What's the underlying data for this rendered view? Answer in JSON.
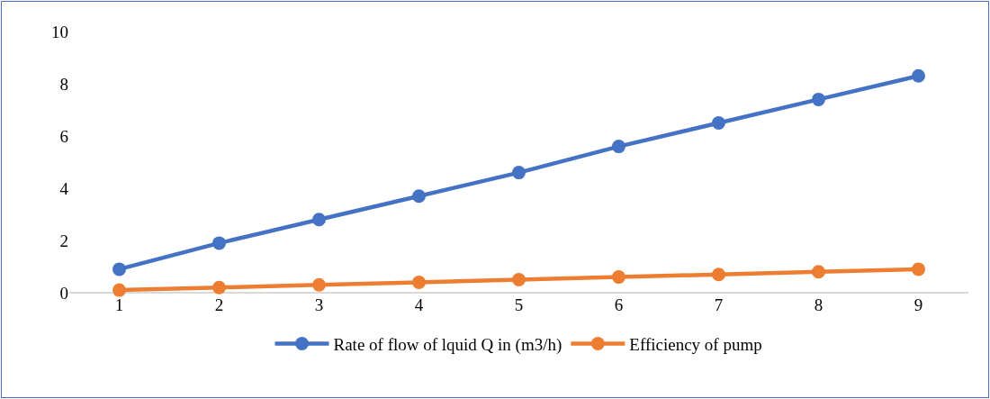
{
  "chart_data": {
    "type": "line",
    "categories": [
      "1",
      "2",
      "3",
      "4",
      "5",
      "6",
      "7",
      "8",
      "9"
    ],
    "series": [
      {
        "name": "Rate of flow of lquid Q in (m3/h)",
        "color": "#4472c4",
        "values": [
          0.9,
          1.9,
          2.8,
          3.7,
          4.6,
          5.6,
          6.5,
          7.4,
          8.3
        ]
      },
      {
        "name": "Efficiency of pump",
        "color": "#ed7d31",
        "values": [
          0.1,
          0.2,
          0.3,
          0.4,
          0.5,
          0.6,
          0.7,
          0.8,
          0.9
        ]
      }
    ],
    "ylim": [
      0,
      10
    ],
    "yticks": [
      0,
      2,
      4,
      6,
      8,
      10
    ],
    "grid": false,
    "legend": "bottom",
    "marker": "circle",
    "line_style": "solid"
  }
}
